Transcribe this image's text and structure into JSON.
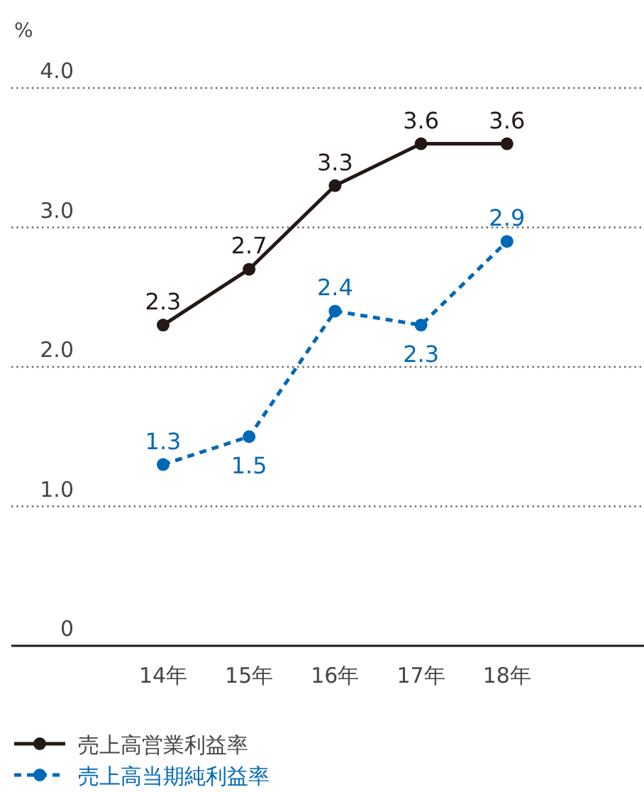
{
  "chart_data": {
    "type": "line",
    "ylabel": "%",
    "categories": [
      "14年",
      "15年",
      "16年",
      "17年",
      "18年"
    ],
    "series": [
      {
        "name": "売上高営業利益率",
        "color": "#231815",
        "values": [
          2.3,
          2.7,
          3.3,
          3.6,
          3.6
        ],
        "line_style": "solid"
      },
      {
        "name": "売上高当期純利益率",
        "color": "#0068b7",
        "values": [
          1.3,
          1.5,
          2.4,
          2.3,
          2.9
        ],
        "line_style": "dashed"
      }
    ],
    "ylim": [
      0,
      4.0
    ],
    "yticks": [
      0,
      {
        "value": 1,
        "label": "1.0"
      },
      {
        "value": 2,
        "label": "2.0"
      },
      {
        "value": 3,
        "label": "3.0"
      },
      {
        "value": 4,
        "label": "4.0"
      }
    ],
    "grid": "y",
    "marker": "circle",
    "data_labels": true,
    "legend": "bottom left"
  }
}
